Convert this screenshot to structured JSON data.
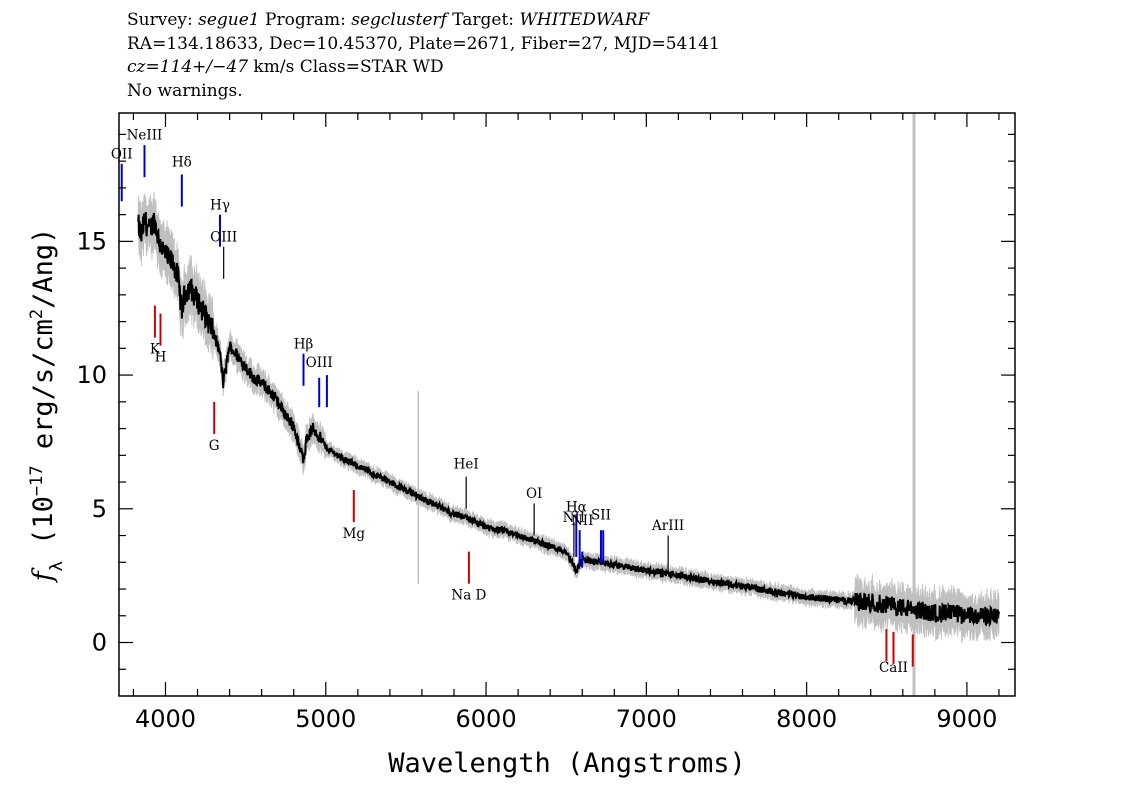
{
  "header": {
    "line1": {
      "survey_label": "Survey: ",
      "survey": "segue1",
      "program_label": " Program: ",
      "program": "segclusterf",
      "target_label": " Target: ",
      "target": "WHITEDWARF"
    },
    "line2": "RA=134.18633, Dec=10.45370, Plate=2671, Fiber=27, MJD=54141",
    "line3": {
      "cz": "cz=114+/−47",
      "rest": " km/s Class=STAR WD"
    },
    "line4": "No warnings."
  },
  "chart_data": {
    "type": "line",
    "title": "",
    "xlabel": "Wavelength (Angstroms)",
    "ylabel_prefix": "f",
    "ylabel_sub": "λ",
    "ylabel_mid": " (10",
    "ylabel_exp": "−17",
    "ylabel_units": " erg/s/cm",
    "ylabel_units_exp": "2",
    "ylabel_end": "/Ang)",
    "xlim": [
      3710,
      9300
    ],
    "ylim": [
      -2,
      19.8
    ],
    "xticks": [
      4000,
      5000,
      6000,
      7000,
      8000,
      9000
    ],
    "yticks": [
      0,
      5,
      10,
      15
    ],
    "colors": {
      "flux": "#000000",
      "error": "#c0c0c0",
      "emission": "#0000cc",
      "absorption": "#cc0000",
      "sky": "#000000"
    },
    "series": [
      {
        "role": "flux",
        "x": [
          3830,
          3850,
          3870,
          3900,
          3930,
          3960,
          3990,
          4020,
          4050,
          4080,
          4101,
          4120,
          4150,
          4200,
          4250,
          4300,
          4340,
          4360,
          4400,
          4450,
          4500,
          4550,
          4600,
          4650,
          4700,
          4750,
          4800,
          4840,
          4861,
          4880,
          4920,
          4960,
          5000,
          5100,
          5200,
          5300,
          5400,
          5500,
          5600,
          5700,
          5800,
          5900,
          6000,
          6100,
          6200,
          6300,
          6400,
          6500,
          6563,
          6600,
          6700,
          6800,
          6900,
          7000,
          7200,
          7400,
          7600,
          7800,
          8000,
          8200,
          8400,
          8500,
          8600,
          8700,
          8800,
          8900,
          9000,
          9100,
          9200
        ],
        "y": [
          15.6,
          15.2,
          15.8,
          15.4,
          15.8,
          15.0,
          14.6,
          14.3,
          14.2,
          13.6,
          12.4,
          13.0,
          13.3,
          12.8,
          12.2,
          11.6,
          10.8,
          9.7,
          11.1,
          10.7,
          10.3,
          9.9,
          9.7,
          9.4,
          9.0,
          8.5,
          8.1,
          7.2,
          6.9,
          7.6,
          8.0,
          7.7,
          7.3,
          6.9,
          6.6,
          6.3,
          6.0,
          5.7,
          5.4,
          5.1,
          4.8,
          4.6,
          4.3,
          4.2,
          4.0,
          3.8,
          3.6,
          3.4,
          2.7,
          3.1,
          3.0,
          2.9,
          2.8,
          2.7,
          2.5,
          2.3,
          2.1,
          1.9,
          1.7,
          1.6,
          1.5,
          1.4,
          1.3,
          1.2,
          1.1,
          1.1,
          1.0,
          1.0,
          1.0
        ]
      }
    ],
    "spectral_lines": [
      {
        "name": "OII",
        "wavelength": 3727,
        "type": "emission",
        "y_top": 17.9,
        "y_bottom": 16.5,
        "label_y": 18.1
      },
      {
        "name": "NeIII",
        "wavelength": 3869,
        "type": "emission",
        "y_top": 18.6,
        "y_bottom": 17.4,
        "label_y": 18.8
      },
      {
        "name": "Hδ",
        "wavelength": 4102,
        "type": "emission",
        "y_top": 17.5,
        "y_bottom": 16.3,
        "label_y": 17.8
      },
      {
        "name": "Hγ",
        "wavelength": 4340,
        "type": "emission",
        "y_top": 16.0,
        "y_bottom": 14.8,
        "label_y": 16.2
      },
      {
        "name": "OIII",
        "wavelength": 4363,
        "type": "sky",
        "y_top": 14.8,
        "y_bottom": 13.6,
        "label_y": 15.0
      },
      {
        "name": "K",
        "wavelength": 3934,
        "type": "absorption",
        "y_top": 12.6,
        "y_bottom": 11.4,
        "label_y": 10.8
      },
      {
        "name": "H",
        "wavelength": 3969,
        "type": "absorption",
        "y_top": 12.3,
        "y_bottom": 11.1,
        "label_y": 10.5
      },
      {
        "name": "G",
        "wavelength": 4304,
        "type": "absorption",
        "y_top": 9.0,
        "y_bottom": 7.8,
        "label_y": 7.2
      },
      {
        "name": "Hβ",
        "wavelength": 4861,
        "type": "emission",
        "y_top": 10.8,
        "y_bottom": 9.6,
        "label_y": 11.0
      },
      {
        "name": "OIII",
        "wavelength": 4959,
        "type": "emission",
        "y_top": 9.9,
        "y_bottom": 8.8,
        "label_y": 10.3
      },
      {
        "name": "",
        "wavelength": 5007,
        "type": "emission",
        "y_top": 10.0,
        "y_bottom": 8.8,
        "label_y": 10.3
      },
      {
        "name": "Mg",
        "wavelength": 5175,
        "type": "absorption",
        "y_top": 5.7,
        "y_bottom": 4.5,
        "label_y": 3.9
      },
      {
        "name": "HeI",
        "wavelength": 5876,
        "type": "sky",
        "y_top": 6.2,
        "y_bottom": 5.0,
        "label_y": 6.5
      },
      {
        "name": "Na D",
        "wavelength": 5893,
        "type": "absorption",
        "y_top": 3.4,
        "y_bottom": 2.2,
        "label_y": 1.6
      },
      {
        "name": "OI",
        "wavelength": 6300,
        "type": "sky",
        "y_top": 5.2,
        "y_bottom": 4.0,
        "label_y": 5.4
      },
      {
        "name": "NII",
        "wavelength": 6548,
        "type": "sky",
        "y_top": 4.5,
        "y_bottom": 3.2,
        "label_y": 4.5
      },
      {
        "name": "Hα",
        "wavelength": 6563,
        "type": "emission",
        "y_top": 4.8,
        "y_bottom": 3.2,
        "label_y": 4.9
      },
      {
        "name": "",
        "wavelength": 6584,
        "type": "emission",
        "y_top": 4.2,
        "y_bottom": 2.9,
        "label_y": 4.4
      },
      {
        "name": "NII",
        "wavelength": 6600,
        "type": "emission",
        "y_top": 3.4,
        "y_bottom": 2.8,
        "label_y": 4.4
      },
      {
        "name": "SII",
        "wavelength": 6717,
        "type": "emission",
        "y_top": 4.2,
        "y_bottom": 3.0,
        "label_y": 4.6
      },
      {
        "name": "",
        "wavelength": 6731,
        "type": "emission",
        "y_top": 4.2,
        "y_bottom": 3.0,
        "label_y": 4.6
      },
      {
        "name": "ArIII",
        "wavelength": 7136,
        "type": "sky",
        "y_top": 4.0,
        "y_bottom": 2.6,
        "label_y": 4.2
      },
      {
        "name": "",
        "wavelength": 8498,
        "type": "absorption",
        "y_top": 0.5,
        "y_bottom": -0.7,
        "label_y": -1.0
      },
      {
        "name": "CaII",
        "wavelength": 8542,
        "type": "absorption",
        "y_top": 0.4,
        "y_bottom": -0.8,
        "label_y": -1.1
      },
      {
        "name": "",
        "wavelength": 8662,
        "type": "absorption",
        "y_top": 0.3,
        "y_bottom": -0.9,
        "label_y": -1.1
      }
    ]
  }
}
